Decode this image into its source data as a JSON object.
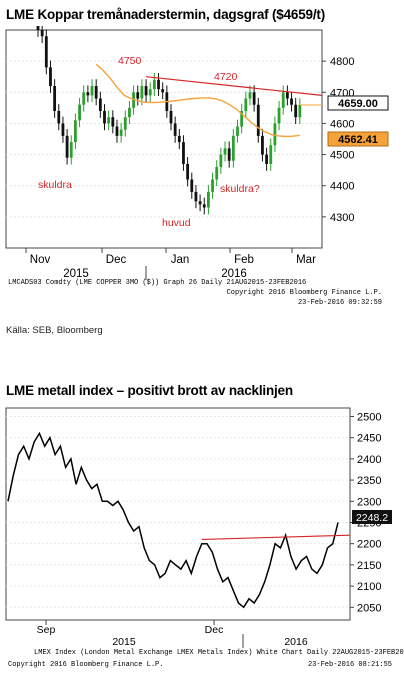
{
  "chart1": {
    "title": "LME Koppar tremånaderstermin, dagsgraf ($4659/t)",
    "source": "Källa: SEB, Bloomberg",
    "footer_left": "LMCADS03 Comdty (LME COPPER   3MO ($)) Graph 26  Daily 21AUG2015-23FEB2016",
    "footer_copyright": "Copyright 2016 Bloomberg Finance L.P.",
    "footer_date": "23-Feb-2016 09:32:59",
    "colors": {
      "candle_up": "#2ca02c",
      "candle_down": "#111111",
      "moving_average": "#f5a23a",
      "resistance": "#d62728",
      "last_label": "#f5a23a",
      "annotation": "#d62728"
    }
  },
  "chart2": {
    "title": "LME metall index – positivt brott av nacklinjen",
    "footer_left": "LMEX Index (London Metal Exchange LMEX Metals Index) White Chart  Daily 22AUG2015-23FEB2016",
    "footer_copyright": "Copyright 2016 Bloomberg Finance L.P.",
    "footer_date": "23-Feb-2016 08:21:55",
    "colors": {
      "line": "#000000",
      "neckline": "#d62728"
    }
  },
  "chart_data": [
    {
      "type": "candlestick",
      "title": "LME Koppar tremånaderstermin, dagsgraf ($4659/t)",
      "ylim": [
        4200,
        4900
      ],
      "y_ticks": [
        4300,
        4400,
        4500,
        4600,
        4700,
        4800
      ],
      "x_month_labels": [
        "Nov",
        "Dec",
        "Jan",
        "Feb",
        "Mar"
      ],
      "x_year_labels": [
        "2015",
        "2016"
      ],
      "annotations": [
        "4750",
        "4720",
        "skuldra",
        "huvud",
        "skuldra?"
      ],
      "last_values": [
        "4659.00",
        "4562.41"
      ],
      "close_series": [
        4900,
        4880,
        4780,
        4720,
        4640,
        4600,
        4560,
        4490,
        4540,
        4610,
        4660,
        4700,
        4690,
        4720,
        4680,
        4640,
        4600,
        4620,
        4590,
        4560,
        4580,
        4620,
        4650,
        4700,
        4680,
        4720,
        4690,
        4710,
        4740,
        4710,
        4700,
        4640,
        4600,
        4560,
        4540,
        4470,
        4420,
        4380,
        4350,
        4340,
        4330,
        4380,
        4420,
        4460,
        4500,
        4520,
        4480,
        4560,
        4590,
        4640,
        4680,
        4700,
        4660,
        4560,
        4500,
        4470,
        4530,
        4600,
        4650,
        4700,
        4680,
        4660,
        4620,
        4659
      ],
      "moving_average": [
        4790,
        4770,
        4745,
        4715,
        4690,
        4680,
        4672,
        4668,
        4667,
        4668,
        4670,
        4672,
        4675,
        4678,
        4680,
        4682,
        4682,
        4679,
        4672,
        4660,
        4645,
        4625,
        4605,
        4587,
        4573,
        4564,
        4560,
        4558,
        4559,
        4562
      ],
      "resistance_line": [
        [
          4750,
          4690
        ]
      ]
    },
    {
      "type": "line",
      "title": "LME metall index – positivt brott av nacklinjen",
      "ylim": [
        2020,
        2520
      ],
      "y_ticks": [
        2050,
        2100,
        2150,
        2200,
        2250,
        2300,
        2350,
        2400,
        2450,
        2500
      ],
      "x_month_labels": [
        "Sep",
        "Dec"
      ],
      "x_year_labels": [
        "2015",
        "2016"
      ],
      "last_value": "2248.2",
      "values": [
        2300,
        2360,
        2410,
        2430,
        2400,
        2440,
        2460,
        2430,
        2450,
        2410,
        2430,
        2380,
        2400,
        2340,
        2380,
        2350,
        2330,
        2340,
        2300,
        2300,
        2290,
        2300,
        2280,
        2250,
        2230,
        2240,
        2190,
        2160,
        2150,
        2120,
        2130,
        2160,
        2150,
        2140,
        2160,
        2130,
        2170,
        2200,
        2200,
        2180,
        2140,
        2110,
        2120,
        2090,
        2060,
        2050,
        2070,
        2060,
        2080,
        2110,
        2150,
        2200,
        2190,
        2220,
        2170,
        2140,
        2160,
        2170,
        2140,
        2130,
        2150,
        2190,
        2200,
        2250
      ],
      "neckline": [
        2210,
        2220
      ]
    }
  ]
}
